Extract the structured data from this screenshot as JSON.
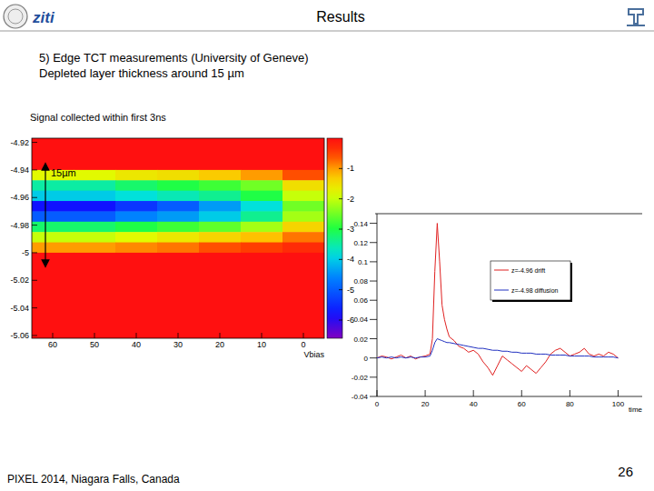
{
  "slide": {
    "title": "Results",
    "logo": "ziti",
    "heading": [
      "5) Edge TCT measurements (University of Geneve)",
      "Depleted layer thickness around 15 µm"
    ],
    "caption": "Signal collected within first 3ns",
    "footer": "PIXEL 2014, Niagara Falls, Canada",
    "page": "26"
  },
  "chart_data": [
    {
      "type": "heatmap",
      "x_label": "Vbias",
      "annotation": "15µm",
      "xlim": [
        65,
        -5
      ],
      "xticks": [
        60,
        50,
        40,
        30,
        20,
        10,
        0
      ],
      "ylim": [
        -5.062,
        -4.917
      ],
      "yticks": [
        -4.92,
        -4.94,
        -4.96,
        -4.98,
        -5,
        -5.02,
        -5.04,
        -5.06
      ],
      "x_edges": [
        65,
        55,
        45,
        35,
        25,
        15,
        5,
        -5
      ],
      "y_edges": [
        -4.917,
        -4.94,
        -4.9475,
        -4.955,
        -4.9625,
        -4.97,
        -4.9775,
        -4.985,
        -4.9925,
        -5.0,
        -5.062
      ],
      "z": [
        [
          0,
          0,
          0,
          0,
          0,
          0,
          0
        ],
        [
          -1.8,
          -1.8,
          -1.6,
          -1.5,
          -1.3,
          -1.0,
          -0.6
        ],
        [
          -3.5,
          -3.5,
          -3.2,
          -3.0,
          -2.8,
          -2.5,
          -1.5
        ],
        [
          -4.0,
          -4.0,
          -3.8,
          -3.6,
          -3.4,
          -3.0,
          -2.0
        ],
        [
          -5.8,
          -5.8,
          -5.4,
          -5.0,
          -4.4,
          -3.8,
          -2.5
        ],
        [
          -5.0,
          -5.0,
          -4.6,
          -4.4,
          -4.0,
          -3.4,
          -2.2
        ],
        [
          -3.2,
          -3.2,
          -3.0,
          -2.8,
          -2.6,
          -2.2,
          -1.4
        ],
        [
          -2.0,
          -2.0,
          -1.8,
          -1.6,
          -1.4,
          -1.2,
          -0.8
        ],
        [
          -1.0,
          -1.0,
          -0.9,
          -0.8,
          -0.6,
          -0.5,
          -0.3
        ],
        [
          0,
          0,
          0,
          0,
          0,
          0,
          0
        ]
      ],
      "colorbar": {
        "range": [
          -6.6,
          0
        ],
        "ticks": [
          -1,
          -2,
          -3,
          -4,
          -5,
          -6
        ]
      }
    },
    {
      "type": "line",
      "x_label": "time",
      "legend": "top-right",
      "xlim": [
        0,
        110
      ],
      "xticks": [
        0,
        20,
        40,
        60,
        80,
        100
      ],
      "ylim": [
        -0.04,
        0.15
      ],
      "yticks": [
        -0.04,
        -0.02,
        0,
        0.02,
        0.04,
        0.06,
        0.08,
        0.1,
        0.12,
        0.14
      ],
      "x": [
        0,
        2,
        4,
        6,
        8,
        10,
        12,
        14,
        16,
        18,
        20,
        22,
        23,
        24,
        25,
        26,
        27,
        28,
        29,
        30,
        32,
        34,
        36,
        38,
        40,
        42,
        44,
        46,
        48,
        50,
        52,
        54,
        56,
        58,
        60,
        62,
        64,
        66,
        68,
        70,
        72,
        74,
        76,
        78,
        80,
        82,
        84,
        86,
        88,
        90,
        92,
        94,
        96,
        98,
        100
      ],
      "series": [
        {
          "name": "z=-4.96 drift",
          "color": "#e02020",
          "values": [
            0,
            0.002,
            0.001,
            -0.001,
            0.001,
            0.003,
            0,
            0.002,
            -0.001,
            0.001,
            0.002,
            0.004,
            0.02,
            0.09,
            0.14,
            0.1,
            0.055,
            0.04,
            0.03,
            0.022,
            0.018,
            0.012,
            0.01,
            0.006,
            0.008,
            0.004,
            -0.004,
            -0.01,
            -0.018,
            -0.008,
            0.002,
            -0.002,
            -0.006,
            -0.01,
            -0.014,
            -0.008,
            -0.012,
            -0.016,
            -0.01,
            -0.004,
            0.004,
            0.008,
            0.01,
            0.006,
            0.002,
            0.004,
            0.006,
            0.01,
            0.004,
            0.002,
            0.004,
            0.002,
            0.006,
            0.004,
            0
          ]
        },
        {
          "name": "z=-4.98 diffusion",
          "color": "#2030c0",
          "values": [
            0,
            0.001,
            0,
            0.001,
            0,
            0.001,
            0,
            0.001,
            0,
            0.001,
            0.001,
            0.002,
            0.008,
            0.016,
            0.02,
            0.019,
            0.018,
            0.017,
            0.016,
            0.016,
            0.015,
            0.014,
            0.013,
            0.012,
            0.011,
            0.01,
            0.01,
            0.009,
            0.008,
            0.008,
            0.007,
            0.007,
            0.006,
            0.006,
            0.005,
            0.005,
            0.005,
            0.004,
            0.004,
            0.004,
            0.003,
            0.003,
            0.003,
            0.003,
            0.002,
            0.002,
            0.002,
            0.002,
            0.002,
            0.001,
            0.001,
            0.001,
            0.001,
            0.001,
            0
          ]
        }
      ]
    }
  ]
}
